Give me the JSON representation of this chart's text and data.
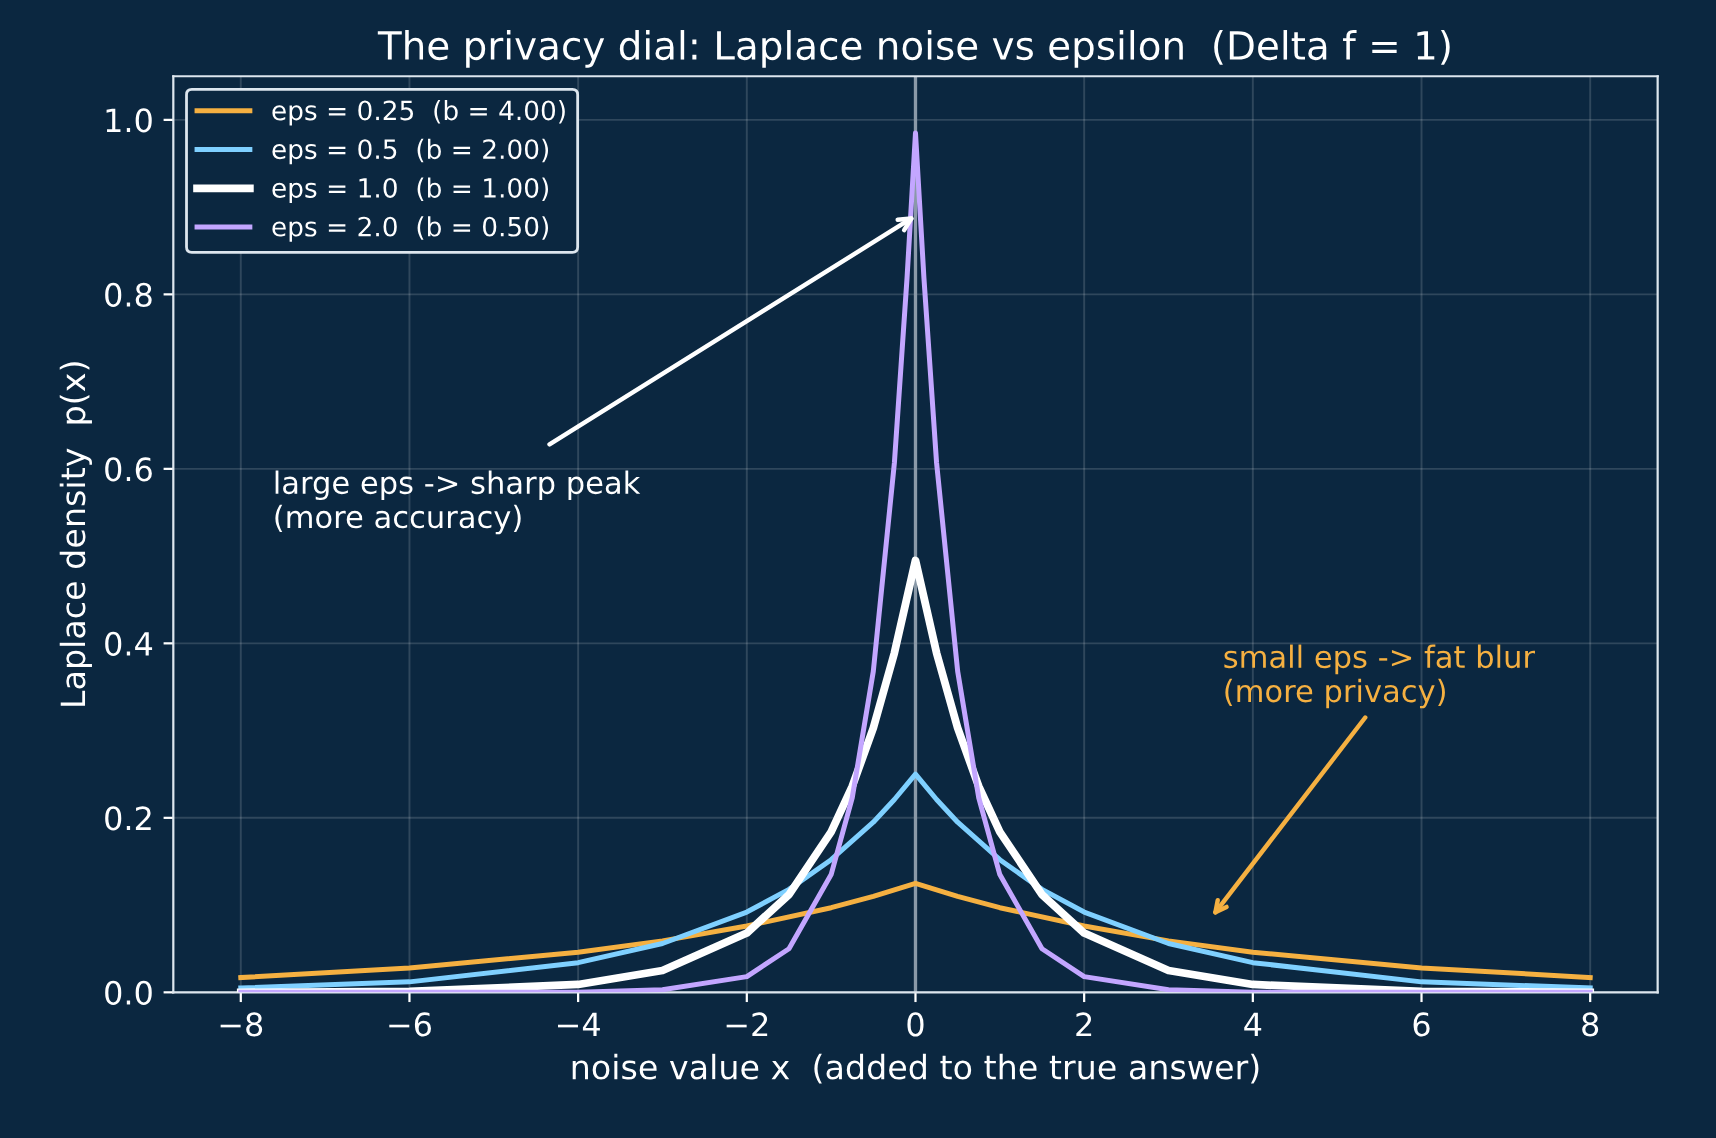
{
  "chart_data": {
    "type": "line",
    "title": "The privacy dial: Laplace noise vs epsilon  (Delta f = 1)",
    "xlabel": "noise value x  (added to the true answer)",
    "ylabel": "Laplace density  p(x)",
    "xlim": [
      -8.8,
      8.8
    ],
    "ylim": [
      0,
      1.05
    ],
    "xticks": [
      {
        "value": -8,
        "label": "−8"
      },
      {
        "value": -6,
        "label": "−6"
      },
      {
        "value": -4,
        "label": "−4"
      },
      {
        "value": -2,
        "label": "−2"
      },
      0,
      2,
      4,
      6,
      8
    ],
    "yticks": [
      {
        "value": 0,
        "label": "0.0"
      },
      {
        "value": 0.2,
        "label": "0.2"
      },
      {
        "value": 0.4,
        "label": "0.4"
      },
      {
        "value": 0.6,
        "label": "0.6"
      },
      {
        "value": 0.8,
        "label": "0.8"
      },
      {
        "value": 1,
        "label": "1.0"
      }
    ],
    "grid": true,
    "legend": "top left",
    "ref_lines": [
      {
        "axis": "x",
        "value": 0,
        "color": "#8a99a8"
      }
    ],
    "series": [
      {
        "name": "eps = 0.25  (b = 4.00)",
        "color": "#f5b041",
        "x": [
          -8,
          -6,
          -4,
          -3,
          -2,
          -1,
          -0.5,
          0,
          0.5,
          1,
          2,
          3,
          4,
          6,
          8
        ],
        "values": [
          0.017,
          0.028,
          0.046,
          0.059,
          0.076,
          0.097,
          0.11,
          0.125,
          0.11,
          0.097,
          0.076,
          0.059,
          0.046,
          0.028,
          0.017
        ]
      },
      {
        "name": "eps = 0.5  (b = 2.00)",
        "color": "#7fd0ff",
        "x": [
          -8,
          -6,
          -4,
          -3,
          -2,
          -1.5,
          -1,
          -0.5,
          -0.25,
          0,
          0.25,
          0.5,
          1,
          1.5,
          2,
          3,
          4,
          6,
          8
        ],
        "values": [
          0.005,
          0.012,
          0.034,
          0.056,
          0.092,
          0.118,
          0.152,
          0.195,
          0.221,
          0.25,
          0.221,
          0.195,
          0.152,
          0.118,
          0.092,
          0.056,
          0.034,
          0.012,
          0.005
        ]
      },
      {
        "name": "eps = 1.0  (b = 1.00)",
        "color": "#ffffff",
        "x": [
          -8,
          -6,
          -4,
          -3,
          -2,
          -1.5,
          -1,
          -0.75,
          -0.5,
          -0.25,
          0,
          0.25,
          0.5,
          0.75,
          1,
          1.5,
          2,
          3,
          4,
          6,
          8
        ],
        "values": [
          0,
          0.001,
          0.009,
          0.025,
          0.068,
          0.112,
          0.184,
          0.236,
          0.303,
          0.389,
          0.495,
          0.389,
          0.303,
          0.236,
          0.184,
          0.112,
          0.068,
          0.025,
          0.009,
          0.001,
          0
        ]
      },
      {
        "name": "eps = 2.0  (b = 0.50)",
        "color": "#c3a6ff",
        "x": [
          -8,
          -4,
          -3,
          -2,
          -1.5,
          -1,
          -0.75,
          -0.5,
          -0.25,
          -0.1,
          0,
          0.1,
          0.25,
          0.5,
          0.75,
          1,
          1.5,
          2,
          3,
          4,
          8
        ],
        "values": [
          0,
          0,
          0.003,
          0.018,
          0.05,
          0.135,
          0.223,
          0.368,
          0.607,
          0.819,
          0.985,
          0.819,
          0.607,
          0.368,
          0.223,
          0.135,
          0.05,
          0.018,
          0.003,
          0,
          0
        ]
      }
    ],
    "annotations": [
      {
        "text": "large eps -> sharp peak\n(more accuracy)",
        "x": 0,
        "y": 0.89
      },
      "small eps -> fat blur\n(more privacy)"
    ]
  }
}
